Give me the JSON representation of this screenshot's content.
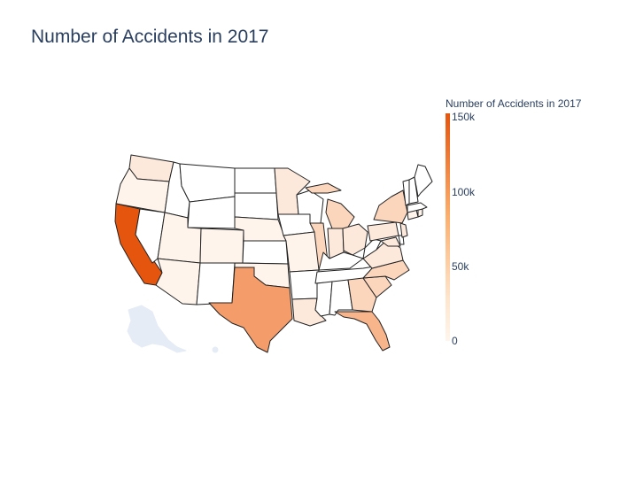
{
  "title": "Number of Accidents in 2017",
  "colorbar": {
    "title": "Number of Accidents in 2017",
    "ticks": [
      "150k",
      "100k",
      "50k",
      "0"
    ],
    "colors": [
      "#e6550d",
      "#fdae6b",
      "#fee6ce",
      "#fff5eb"
    ]
  },
  "palette": {
    "ca": "#e6550d",
    "tx": "#f49d6a",
    "fl": "#f8b48b",
    "light": "#fbd5bc",
    "pale": "#fde9dc",
    "faint": "#fef4ec",
    "none": "#ffffff",
    "ak": "#e5ecf6"
  }
}
